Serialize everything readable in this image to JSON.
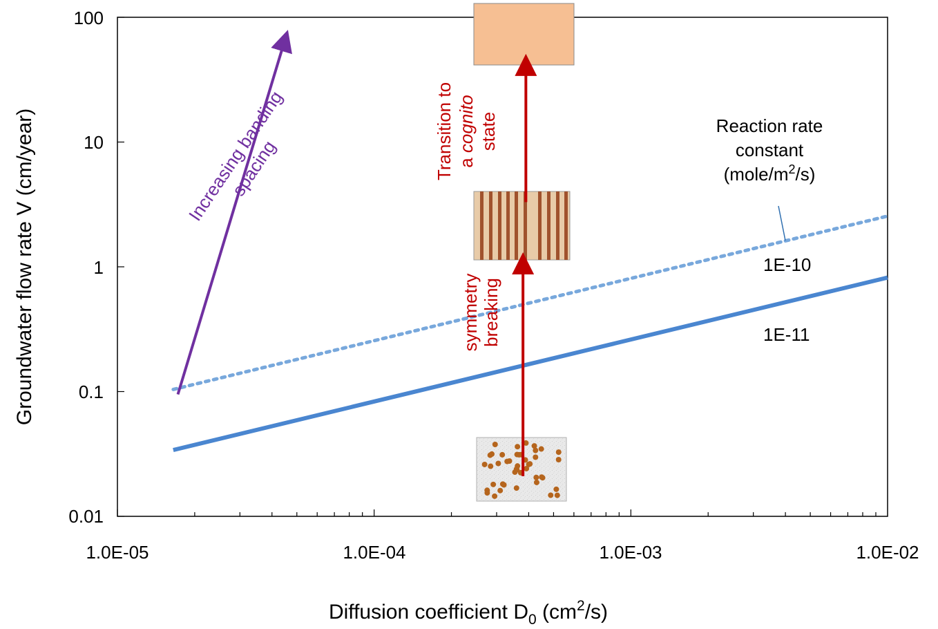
{
  "chart_data": {
    "type": "line",
    "x_scale": "log",
    "y_scale": "log",
    "xlim": [
      1e-05,
      0.01
    ],
    "ylim": [
      0.01,
      100
    ],
    "xticks": [
      "1.0E-05",
      "1.0E-04",
      "1.0E-03",
      "1.0E-02"
    ],
    "yticks": [
      "0.01",
      "0.1",
      "1",
      "10",
      "100"
    ],
    "xlabel": {
      "main": "Diffusion coefficient D",
      "sub": "0",
      "unit_open": " (cm",
      "sup": "2",
      "unit_close": "/s)"
    },
    "ylabel": "Groundwater flow rate V (cm/year)",
    "grid": false,
    "series": [
      {
        "name": "1E-10",
        "style": "dotted",
        "color": "#78a8dc",
        "x": [
          1.65e-05,
          0.01
        ],
        "y": [
          0.104,
          2.55
        ]
      },
      {
        "name": "1E-11",
        "style": "solid",
        "color": "#4a86d0",
        "x": [
          1.65e-05,
          0.01
        ],
        "y": [
          0.034,
          0.82
        ]
      }
    ],
    "legend_title": {
      "line1": "Reaction rate",
      "line2": "constant",
      "line3_open": "(mole/m",
      "line3_sup": "2",
      "line3_close": "/s)"
    },
    "annotations": {
      "banding_arrow": {
        "color": "#7030a0",
        "line1": "Increasing banding",
        "line2": "spacing",
        "from": [
          1.72e-05,
          0.095
        ],
        "to": [
          4.55e-05,
          72
        ]
      },
      "symmetry_arrow": {
        "color": "#c00000",
        "line1": "symmetry",
        "line2": "breaking",
        "from": [
          0.00038,
          0.021
        ],
        "to": [
          0.00038,
          1.18
        ]
      },
      "transition_arrow": {
        "color": "#c00000",
        "line1": "Transition to",
        "line2_pre": "a ",
        "line2_italic": "cognito",
        "line3": "state",
        "from": [
          0.00039,
          3.3
        ],
        "to": [
          0.00039,
          46
        ]
      }
    },
    "colors": {
      "salmon_box": "#f6bf93",
      "banding_dark": "#a0522d",
      "banding_light": "#e8cba8",
      "dots": "#b5651d",
      "noise_bg": "#e9e9e9"
    }
  }
}
